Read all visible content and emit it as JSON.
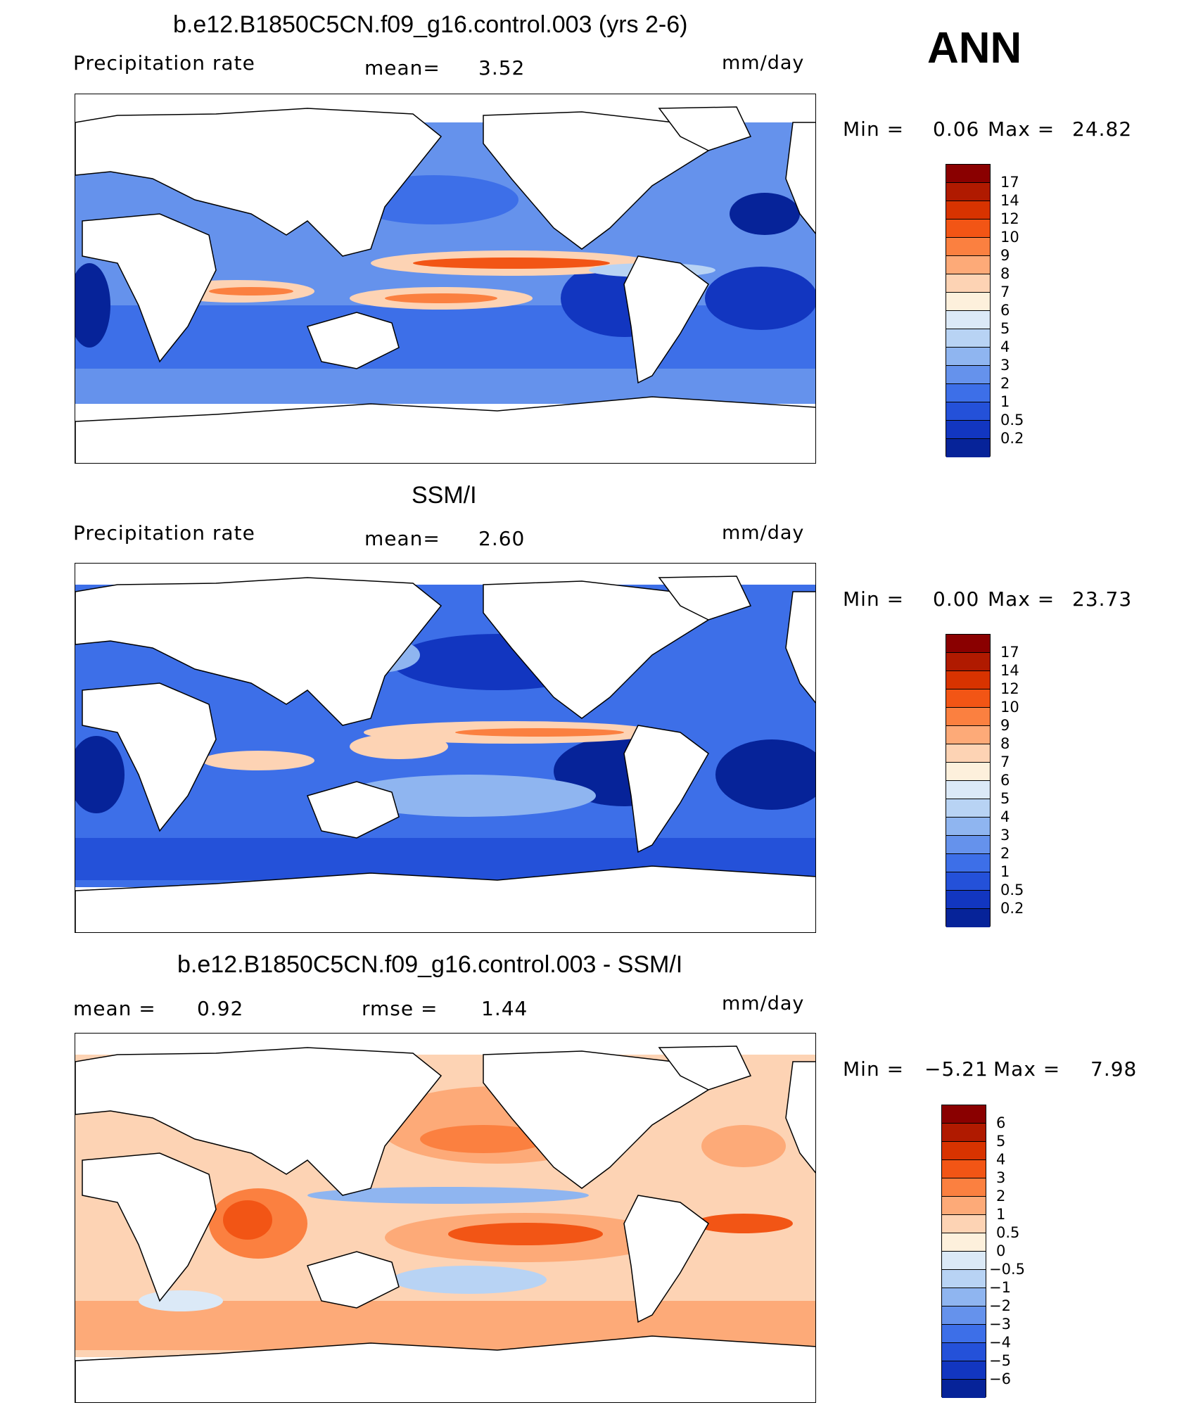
{
  "header": {
    "season": "ANN"
  },
  "panels": [
    {
      "id": "model",
      "title": "b.e12.B1850C5CN.f09_g16.control.003 (yrs 2-6)",
      "left_label": "Precipitation  rate",
      "mid_label": "mean=",
      "mid_value": "3.52",
      "units": "mm/day",
      "stats": {
        "min_label": "Min  =",
        "min_value": "0.06",
        "max_label": "Max  =",
        "max_value": "24.82"
      },
      "colorbar": {
        "labels": [
          "17",
          "14",
          "12",
          "10",
          "9",
          "8",
          "7",
          "6",
          "5",
          "4",
          "3",
          "2",
          "1",
          "0.5",
          "0.2"
        ],
        "colors": [
          "#8a0000",
          "#b01a00",
          "#d83300",
          "#f25515",
          "#fb8040",
          "#fdaa78",
          "#fdd3b4",
          "#fdf0dc",
          "#dbe9f7",
          "#b8d3f4",
          "#8fb5f0",
          "#6592ec",
          "#3d6fe8",
          "#2451d9",
          "#1236c0",
          "#062399"
        ]
      }
    },
    {
      "id": "obs",
      "title": "SSM/I",
      "left_label": "Precipitation  rate",
      "mid_label": "mean=",
      "mid_value": "2.60",
      "units": "mm/day",
      "stats": {
        "min_label": "Min  =",
        "min_value": "0.00",
        "max_label": "Max  =",
        "max_value": "23.73"
      },
      "colorbar": {
        "labels": [
          "17",
          "14",
          "12",
          "10",
          "9",
          "8",
          "7",
          "6",
          "5",
          "4",
          "3",
          "2",
          "1",
          "0.5",
          "0.2"
        ],
        "colors": [
          "#8a0000",
          "#b01a00",
          "#d83300",
          "#f25515",
          "#fb8040",
          "#fdaa78",
          "#fdd3b4",
          "#fdf0dc",
          "#dbe9f7",
          "#b8d3f4",
          "#8fb5f0",
          "#6592ec",
          "#3d6fe8",
          "#2451d9",
          "#1236c0",
          "#062399"
        ]
      }
    },
    {
      "id": "diff",
      "title": "b.e12.B1850C5CN.f09_g16.control.003 - SSM/I",
      "left_label": "mean  =",
      "left_value": "0.92",
      "mid_label": "rmse  =",
      "mid_value": "1.44",
      "units": "mm/day",
      "stats": {
        "min_label": "Min  =",
        "min_value": "−5.21",
        "max_label": "Max  =",
        "max_value": "7.98"
      },
      "colorbar": {
        "labels": [
          "6",
          "5",
          "4",
          "3",
          "2",
          "1",
          "0.5",
          "0",
          "−0.5",
          "−1",
          "−2",
          "−3",
          "−4",
          "−5",
          "−6"
        ],
        "colors": [
          "#8a0000",
          "#b01a00",
          "#d83300",
          "#f25515",
          "#fb8040",
          "#fdaa78",
          "#fdd3b4",
          "#fdf0dc",
          "#dbe9f7",
          "#b8d3f4",
          "#8fb5f0",
          "#6592ec",
          "#3d6fe8",
          "#2451d9",
          "#1236c0",
          "#062399"
        ]
      }
    }
  ]
}
